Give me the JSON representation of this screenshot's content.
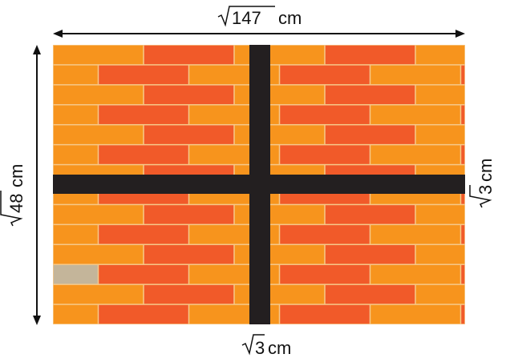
{
  "labels": {
    "top_number": "147",
    "top_unit": "cm",
    "left_number": "48",
    "left_unit": "cm",
    "right_number": "3",
    "right_unit": "cm",
    "bottom_number": "3",
    "bottom_unit": "cm"
  },
  "colors": {
    "mortar": "#f6c98a",
    "brick_orange": "#f7941d",
    "brick_red": "#f15a29",
    "brick_brown": "#8b5a3c",
    "brick_tan": "#c4b59a",
    "brick_gray": "#a08a78",
    "brick_dark": "#6e6256",
    "strip": "#231f20",
    "arrow": "#111111"
  }
}
